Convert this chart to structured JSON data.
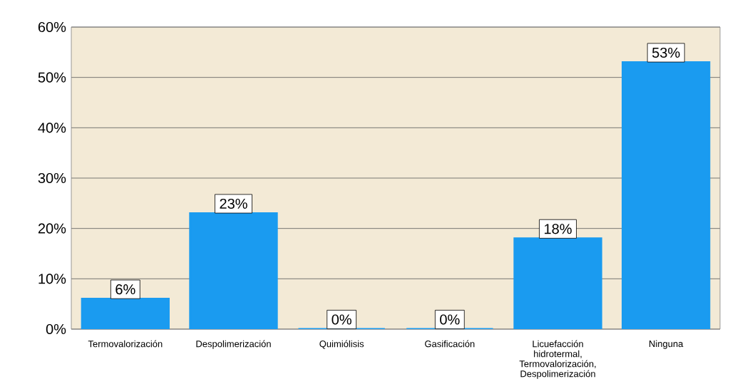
{
  "chart_data": {
    "type": "bar",
    "categories": [
      "Termovalorización",
      "Despolimerización",
      "Quimiólisis",
      "Gasificación",
      "Licuefacción hidrotermal, Termovalorización, Despolimerización",
      "Ninguna"
    ],
    "values": [
      6,
      23,
      0,
      0,
      18,
      53
    ],
    "value_labels": [
      "6%",
      "23%",
      "0%",
      "0%",
      "18%",
      "53%"
    ],
    "color": "#1a9bf0",
    "ylim": [
      0,
      60
    ],
    "yticks": [
      {
        "value": 0,
        "label": "0%"
      },
      {
        "value": 10,
        "label": "10%"
      },
      {
        "value": 20,
        "label": "20%"
      },
      {
        "value": 30,
        "label": "30%"
      },
      {
        "value": 40,
        "label": "40%"
      },
      {
        "value": 50,
        "label": "50%"
      },
      {
        "value": 60,
        "label": "60%"
      }
    ],
    "grid": "y"
  }
}
